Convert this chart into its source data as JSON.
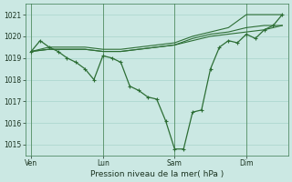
{
  "background_color": "#cbe8e3",
  "grid_color": "#a8d4cc",
  "line_color": "#2d6e35",
  "xlabel": "Pression niveau de la mer( hPa )",
  "ylim": [
    1014.5,
    1021.5
  ],
  "yticks": [
    1015,
    1016,
    1017,
    1018,
    1019,
    1020,
    1021
  ],
  "xtick_labels": [
    "Ven",
    "Lun",
    "Sam",
    "Dim"
  ],
  "xtick_positions": [
    0,
    24,
    48,
    72
  ],
  "xmin": -2,
  "xmax": 86,
  "vline_positions": [
    0,
    24,
    48,
    72
  ],
  "s1_x": [
    0,
    3,
    6,
    9,
    12,
    15,
    18,
    21,
    24,
    27,
    30,
    33,
    36,
    39,
    42,
    45,
    48,
    51,
    54,
    57,
    60,
    63,
    66,
    69,
    72,
    75,
    78,
    81,
    84
  ],
  "s1_y": [
    1019.3,
    1019.8,
    1019.5,
    1019.3,
    1019.0,
    1018.8,
    1018.5,
    1018.0,
    1019.1,
    1019.0,
    1018.8,
    1017.7,
    1017.5,
    1017.2,
    1017.1,
    1016.1,
    1014.8,
    1014.8,
    1016.5,
    1016.6,
    1018.5,
    1019.5,
    1019.8,
    1019.7,
    1020.1,
    1019.9,
    1020.3,
    1020.5,
    1021.0
  ],
  "s2_x": [
    0,
    6,
    12,
    18,
    24,
    30,
    36,
    42,
    48,
    54,
    60,
    66,
    72,
    78,
    84
  ],
  "s2_y": [
    1019.3,
    1019.4,
    1019.4,
    1019.4,
    1019.3,
    1019.3,
    1019.4,
    1019.5,
    1019.6,
    1019.8,
    1020.0,
    1020.1,
    1020.2,
    1020.3,
    1020.5
  ],
  "s3_x": [
    0,
    6,
    12,
    18,
    24,
    30,
    36,
    42,
    48,
    54,
    60,
    66,
    72,
    78,
    84
  ],
  "s3_y": [
    1019.3,
    1019.4,
    1019.4,
    1019.4,
    1019.3,
    1019.3,
    1019.4,
    1019.5,
    1019.6,
    1019.9,
    1020.1,
    1020.2,
    1020.4,
    1020.5,
    1020.5
  ],
  "s4_x": [
    0,
    6,
    12,
    18,
    24,
    30,
    36,
    42,
    48,
    54,
    60,
    66,
    72,
    78,
    84
  ],
  "s4_y": [
    1019.3,
    1019.5,
    1019.5,
    1019.5,
    1019.4,
    1019.4,
    1019.5,
    1019.6,
    1019.7,
    1020.0,
    1020.2,
    1020.4,
    1021.0,
    1021.0,
    1021.0
  ]
}
